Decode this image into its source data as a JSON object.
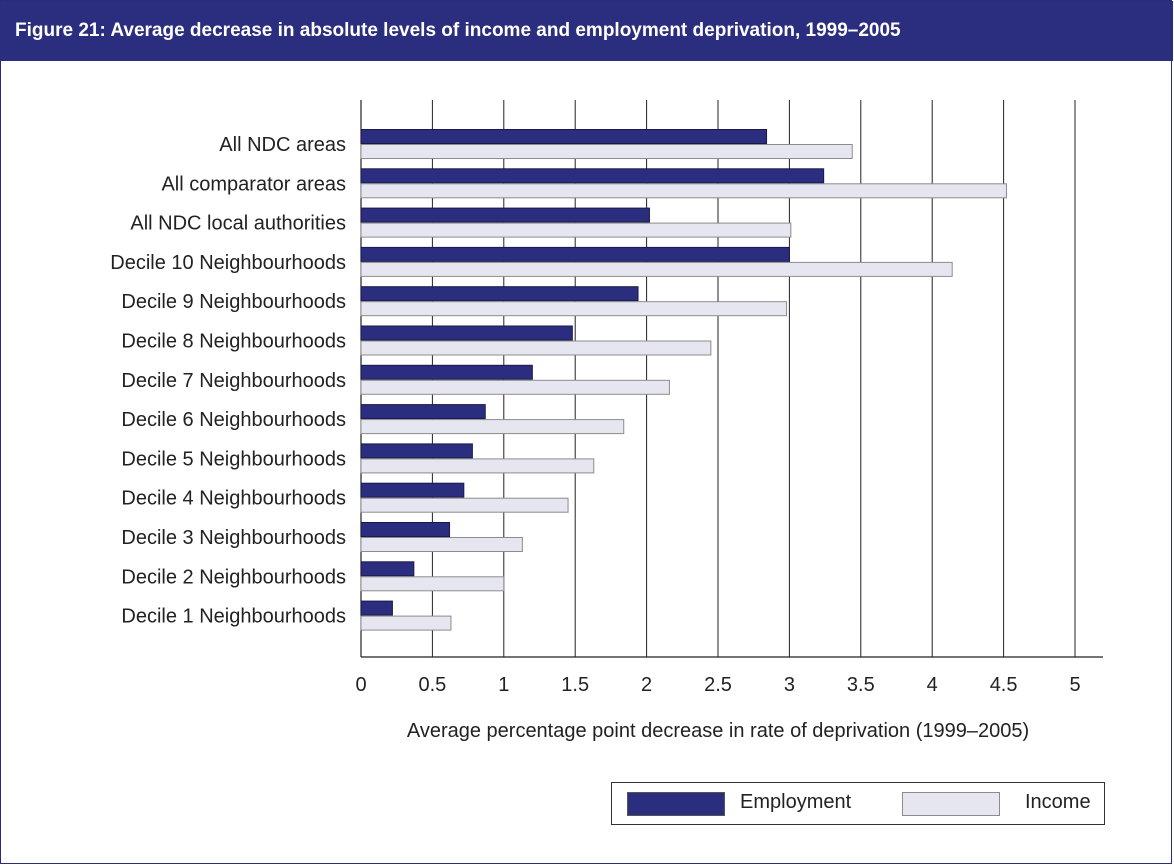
{
  "figure": {
    "title": "Figure 21: Average decrease in absolute levels of income and employment deprivation, 1999–2005"
  },
  "colors": {
    "title_bg": "#2b2d7e",
    "employment": "#2b2d7e",
    "income": "#e6e6f0",
    "income_border": "#8c8c8c",
    "grid": "#222222"
  },
  "chart_data": {
    "type": "bar",
    "orientation": "horizontal",
    "title": "Figure 21: Average decrease in absolute levels of income and employment deprivation, 1999–2005",
    "xlabel": "Average percentage point decrease in rate of deprivation (1999–2005)",
    "ylabel": "",
    "xlim": [
      0,
      5
    ],
    "x_ticks": [
      "0",
      "0.5",
      "1",
      "1.5",
      "2",
      "2.5",
      "3",
      "3.5",
      "4",
      "4.5",
      "5"
    ],
    "grid": "vertical",
    "legend_position": "bottom-right",
    "categories": [
      "All NDC areas",
      "All comparator areas",
      "All NDC local authorities",
      "Decile 10 Neighbourhoods",
      "Decile 9 Neighbourhoods",
      "Decile 8 Neighbourhoods",
      "Decile 7 Neighbourhoods",
      "Decile 6 Neighbourhoods",
      "Decile 5 Neighbourhoods",
      "Decile 4 Neighbourhoods",
      "Decile 3 Neighbourhoods",
      "Decile 2 Neighbourhoods",
      "Decile 1 Neighbourhoods"
    ],
    "series": [
      {
        "name": "Employment",
        "values": [
          2.84,
          3.24,
          2.02,
          3.0,
          1.94,
          1.48,
          1.2,
          0.87,
          0.78,
          0.72,
          0.62,
          0.37,
          0.22
        ]
      },
      {
        "name": "Income",
        "values": [
          3.44,
          4.52,
          3.01,
          4.14,
          2.98,
          2.45,
          2.16,
          1.84,
          1.63,
          1.45,
          1.13,
          1.0,
          0.63
        ]
      }
    ]
  }
}
